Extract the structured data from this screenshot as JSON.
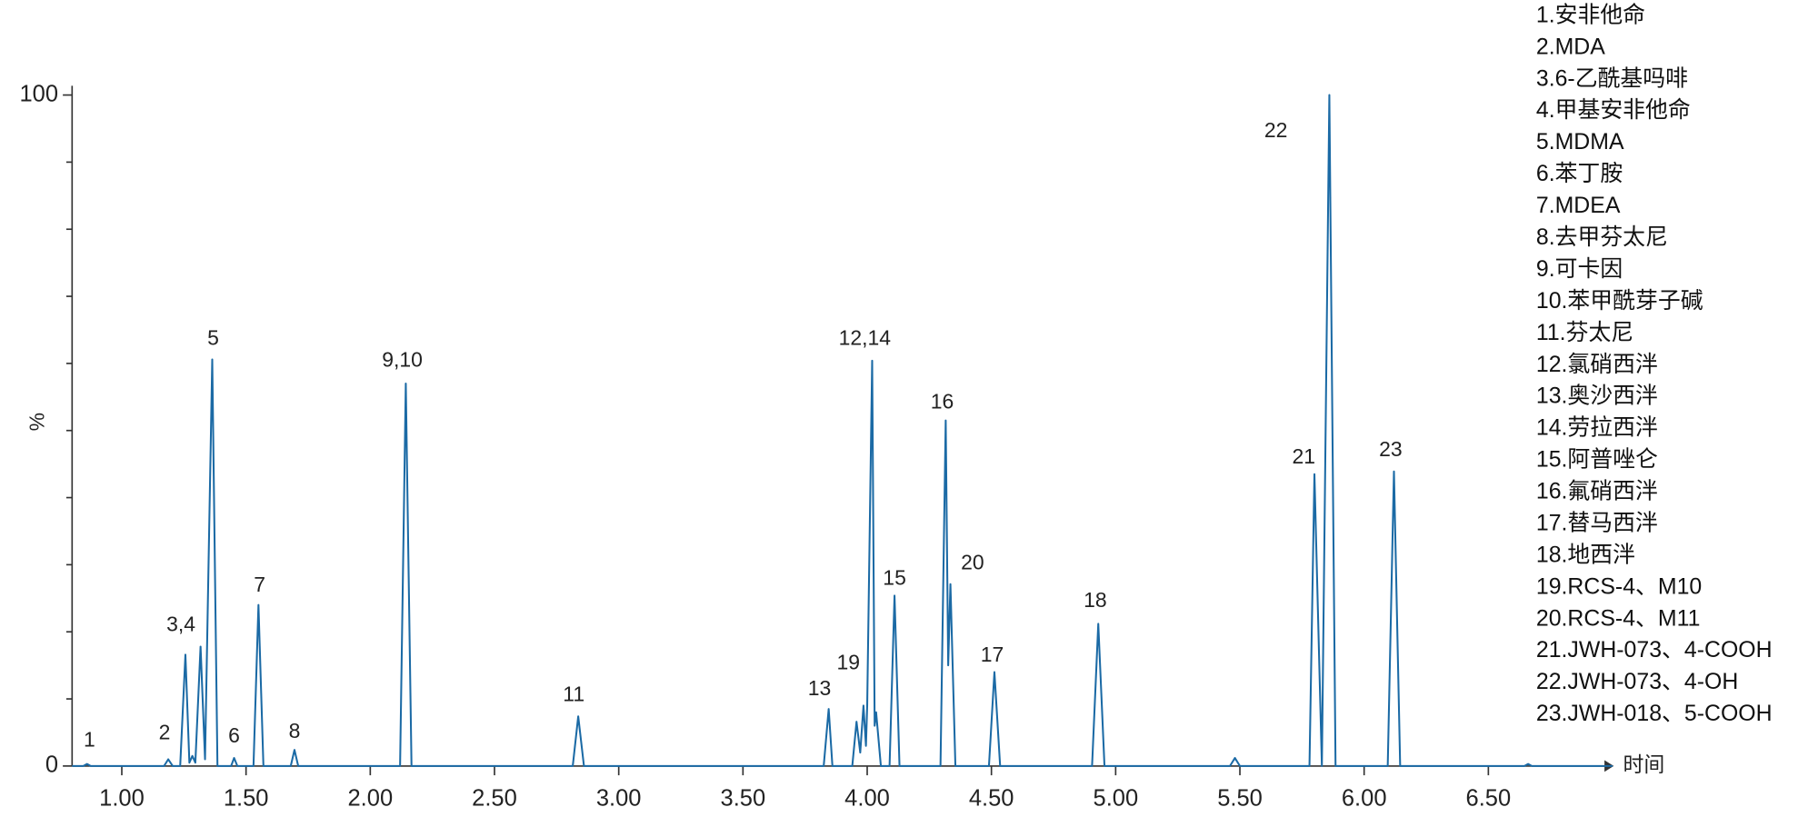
{
  "chart_data": {
    "type": "line",
    "x_axis_label": "时间",
    "y_axis_label": "%",
    "color": "#1b6aa5",
    "xlim": [
      0.8,
      7.0
    ],
    "ylim": [
      0,
      100
    ],
    "xticks": [
      {
        "value": 1,
        "label": "1.00"
      },
      {
        "value": 1.5,
        "label": "1.50"
      },
      {
        "value": 2,
        "label": "2.00"
      },
      {
        "value": 2.5,
        "label": "2.50"
      },
      {
        "value": 3,
        "label": "3.00"
      },
      {
        "value": 3.5,
        "label": "3.50"
      },
      {
        "value": 4,
        "label": "4.00"
      },
      {
        "value": 4.5,
        "label": "4.50"
      },
      {
        "value": 5,
        "label": "5.00"
      },
      {
        "value": 5.5,
        "label": "5.50"
      },
      {
        "value": 6,
        "label": "6.00"
      },
      {
        "value": 6.5,
        "label": "6.50"
      }
    ],
    "yticks": [
      0,
      100
    ],
    "yminorticks": [
      10,
      20,
      30,
      40,
      50,
      60,
      70,
      80,
      90
    ],
    "x": [
      0.8,
      0.845,
      0.86,
      0.875,
      1.17,
      1.187,
      1.205,
      1.235,
      1.256,
      1.272,
      1.284,
      1.296,
      1.317,
      1.335,
      1.364,
      1.385,
      1.44,
      1.452,
      1.465,
      1.53,
      1.55,
      1.57,
      1.68,
      1.695,
      1.71,
      2.12,
      2.143,
      2.166,
      2.815,
      2.837,
      2.86,
      3.825,
      3.845,
      3.86,
      3.94,
      3.957,
      3.972,
      3.985,
      3.995,
      4.0,
      4.02,
      4.03,
      4.036,
      4.055,
      4.09,
      4.11,
      4.13,
      4.295,
      4.316,
      4.326,
      4.335,
      4.355,
      4.49,
      4.512,
      4.535,
      4.905,
      4.93,
      4.955,
      5.46,
      5.48,
      5.5,
      5.78,
      5.8,
      5.83,
      5.86,
      5.885,
      6.095,
      6.12,
      6.145,
      6.645,
      6.66,
      6.675,
      7.0
    ],
    "values": [
      0,
      0,
      0.3,
      0,
      0,
      1,
      0,
      0,
      16.6,
      0.5,
      1.5,
      0.5,
      17.8,
      1,
      60.6,
      0,
      0,
      1.2,
      0,
      0,
      24,
      0,
      0,
      2.4,
      0,
      0,
      57,
      0,
      0,
      7.4,
      0,
      0,
      8.5,
      0,
      0,
      6.6,
      2,
      9,
      3,
      9,
      60.4,
      6,
      8,
      0,
      0,
      25.4,
      0,
      0,
      51.5,
      15,
      27.1,
      0,
      0,
      14,
      0,
      0,
      21.2,
      0,
      0,
      1.2,
      0,
      0,
      43.5,
      0,
      100,
      0,
      0,
      43.9,
      0,
      0,
      0.3,
      0,
      0
    ],
    "annotations": [
      {
        "text": "1",
        "x": 0.87,
        "y": 3.7
      },
      {
        "text": "2",
        "x": 1.172,
        "y": 4.8
      },
      {
        "text": "3,4",
        "x": 1.238,
        "y": 20.9
      },
      {
        "text": "5",
        "x": 1.368,
        "y": 63.6
      },
      {
        "text": "6",
        "x": 1.452,
        "y": 4.3
      },
      {
        "text": "7",
        "x": 1.555,
        "y": 26.8
      },
      {
        "text": "8",
        "x": 1.695,
        "y": 5.0
      },
      {
        "text": "9,10",
        "x": 2.129,
        "y": 60.3
      },
      {
        "text": "11",
        "x": 2.819,
        "y": 10.5
      },
      {
        "text": "13",
        "x": 3.808,
        "y": 11.4
      },
      {
        "text": "19",
        "x": 3.924,
        "y": 15.2
      },
      {
        "text": "12,14",
        "x": 3.99,
        "y": 63.6
      },
      {
        "text": "15",
        "x": 4.11,
        "y": 27.8
      },
      {
        "text": "16",
        "x": 4.302,
        "y": 54.1
      },
      {
        "text": "20",
        "x": 4.424,
        "y": 30.1
      },
      {
        "text": "17",
        "x": 4.503,
        "y": 16.4
      },
      {
        "text": "18",
        "x": 4.918,
        "y": 24.5
      },
      {
        "text": "21",
        "x": 5.757,
        "y": 45.9
      },
      {
        "text": "22",
        "x": 5.645,
        "y": 94.5
      },
      {
        "text": "23",
        "x": 6.107,
        "y": 47
      }
    ],
    "legend_items": [
      "1.安非他命",
      "2.MDA",
      "3.6-乙酰基吗啡",
      "4.甲基安非他命",
      "5.MDMA",
      "6.苯丁胺",
      "7.MDEA",
      "8.去甲芬太尼",
      "9.可卡因",
      "10.苯甲酰芽子碱",
      "11.芬太尼",
      "12.氯硝西泮",
      "13.奥沙西泮",
      "14.劳拉西泮",
      "15.阿普唑仑",
      "16.氟硝西泮",
      "17.替马西泮",
      "18.地西泮",
      "19.RCS-4、M10",
      "20.RCS-4、M11",
      "21.JWH-073、4-COOH",
      "22.JWH-073、4-OH",
      "23.JWH-018、5-COOH"
    ]
  }
}
